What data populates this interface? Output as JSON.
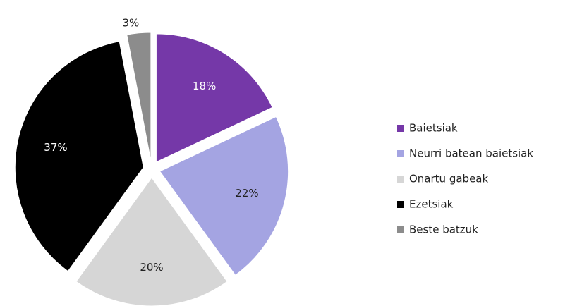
{
  "chart_data": {
    "type": "pie",
    "categories": [
      "Baietsiak",
      "Neurri batean baietsiak",
      "Onartu gabeak",
      "Ezetsiak",
      "Beste batzuk"
    ],
    "values": [
      18,
      22,
      20,
      37,
      3
    ],
    "value_labels": [
      "18%",
      "22%",
      "20%",
      "37%",
      "3%"
    ],
    "colors": [
      "#7538a8",
      "#a4a4e2",
      "#d6d6d6",
      "#000000",
      "#8c8c8c"
    ],
    "legend": "right"
  }
}
